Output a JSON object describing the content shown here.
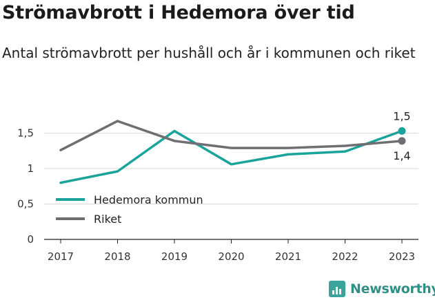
{
  "title": "Strömavbrott i Hedemora över tid",
  "subtitle": "Antal strömavbrott per hushåll och år i kommunen och riket",
  "logo_text": "Newsworthy",
  "chart_data": {
    "type": "line",
    "x": [
      "2017",
      "2018",
      "2019",
      "2020",
      "2021",
      "2022",
      "2023"
    ],
    "y_ticks": [
      {
        "value": 0,
        "label": "0"
      },
      {
        "value": 0.5,
        "label": "0,5"
      },
      {
        "value": 1,
        "label": "1"
      },
      {
        "value": 1.5,
        "label": "1,5"
      }
    ],
    "ylim": [
      0,
      1.65
    ],
    "grid": true,
    "legend_position": "bottom-left",
    "series": [
      {
        "name": "Hedemora kommun",
        "color": "#1aa39a",
        "values": [
          0.8,
          0.96,
          1.53,
          1.06,
          1.2,
          1.24,
          1.53
        ],
        "end_label": "1,5"
      },
      {
        "name": "Riket",
        "color": "#6e6e73",
        "values": [
          1.26,
          1.67,
          1.39,
          1.29,
          1.29,
          1.32,
          1.39
        ],
        "end_label": "1,4"
      }
    ]
  }
}
